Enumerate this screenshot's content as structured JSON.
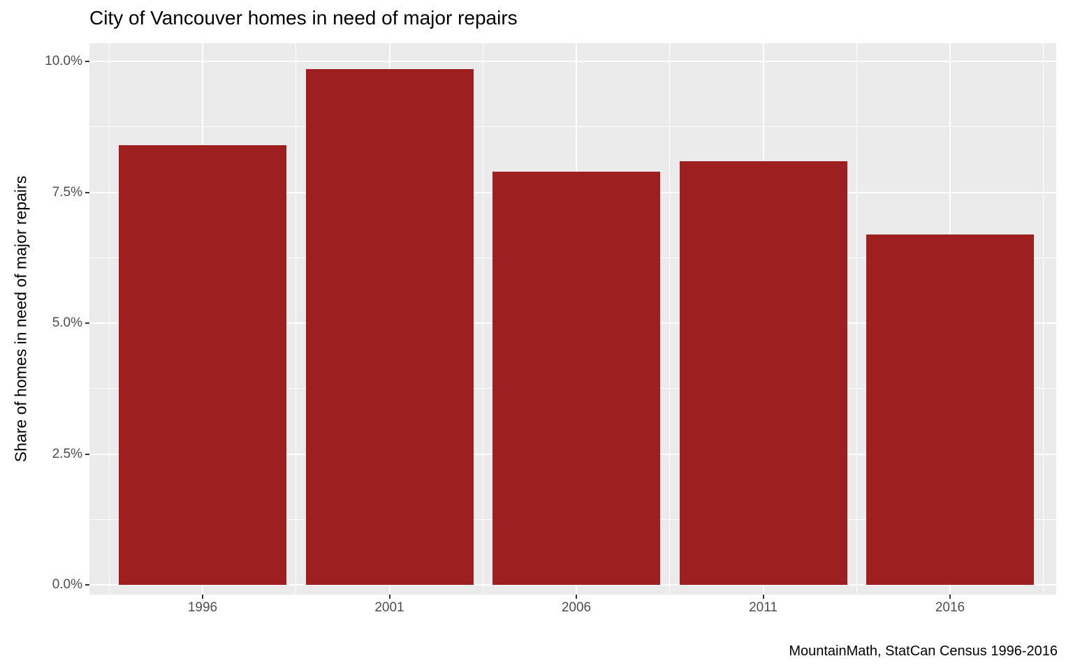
{
  "chart_data": {
    "type": "bar",
    "title": "City of Vancouver homes in need of major repairs",
    "ylabel": "Share of homes in need of major repairs",
    "xlabel": "",
    "caption": "MountainMath, StatCan Census 1996-2016",
    "categories": [
      "1996",
      "2001",
      "2006",
      "2011",
      "2016"
    ],
    "values": [
      8.4,
      9.85,
      7.9,
      8.1,
      6.7
    ],
    "unit": "%",
    "y_ticks": [
      0,
      2.5,
      5,
      7.5,
      10
    ],
    "y_tick_labels": [
      "0.0%",
      "2.5%",
      "5.0%",
      "7.5%",
      "10.0%"
    ],
    "y_minor_ticks": [
      1.25,
      3.75,
      6.25,
      8.75
    ],
    "ylim": [
      0,
      10
    ],
    "grid": true,
    "legend": "none",
    "bar_color": "#9E1F1F",
    "panel_background": "#EBEBEB",
    "gridline_color": "#FFFFFF",
    "axis_text_color": "#4D4D4D"
  }
}
